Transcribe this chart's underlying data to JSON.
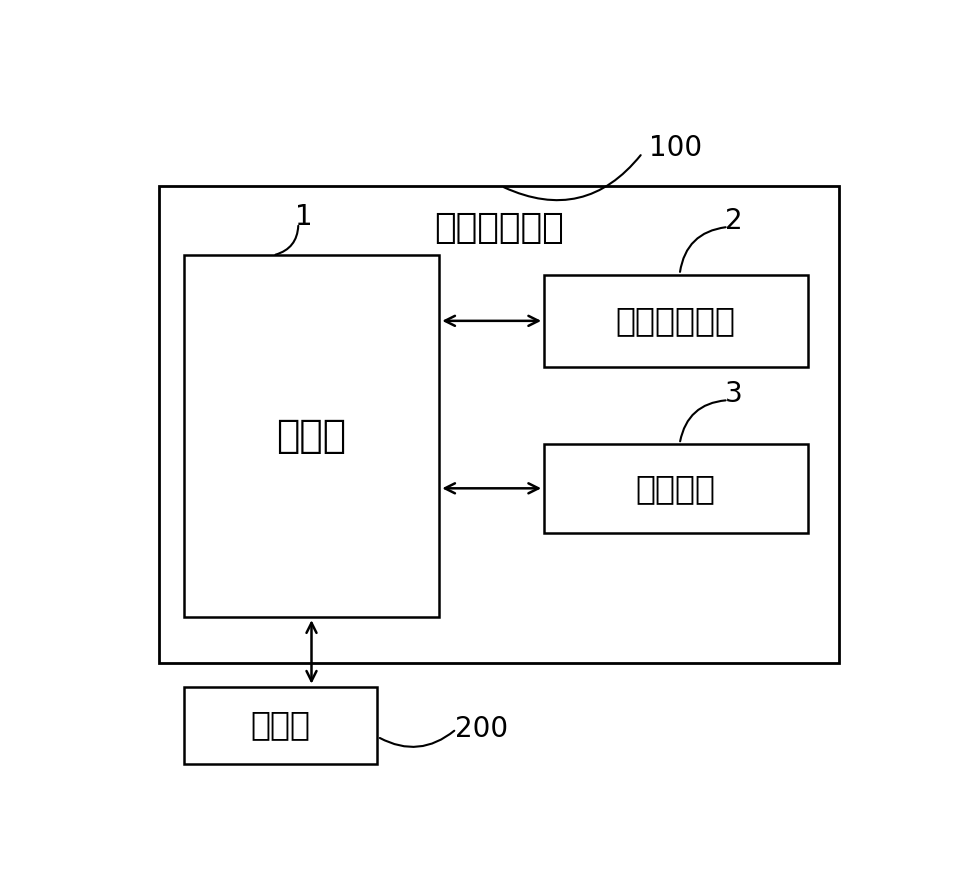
{
  "title": "光热治疗系统",
  "label_100": "100",
  "label_1": "1",
  "label_2": "2",
  "label_3": "3",
  "label_200": "200",
  "box_main_label": "工控机",
  "box_laser_label": "激光发射机构",
  "box_inject_label": "注射装置",
  "box_treat_label": "治疗台",
  "bg_color": "#ffffff",
  "box_edge_color": "#000000",
  "text_color": "#000000",
  "lw": 1.8,
  "font_size_title": 26,
  "font_size_box_large": 28,
  "font_size_box_small": 24,
  "font_size_label": 20
}
